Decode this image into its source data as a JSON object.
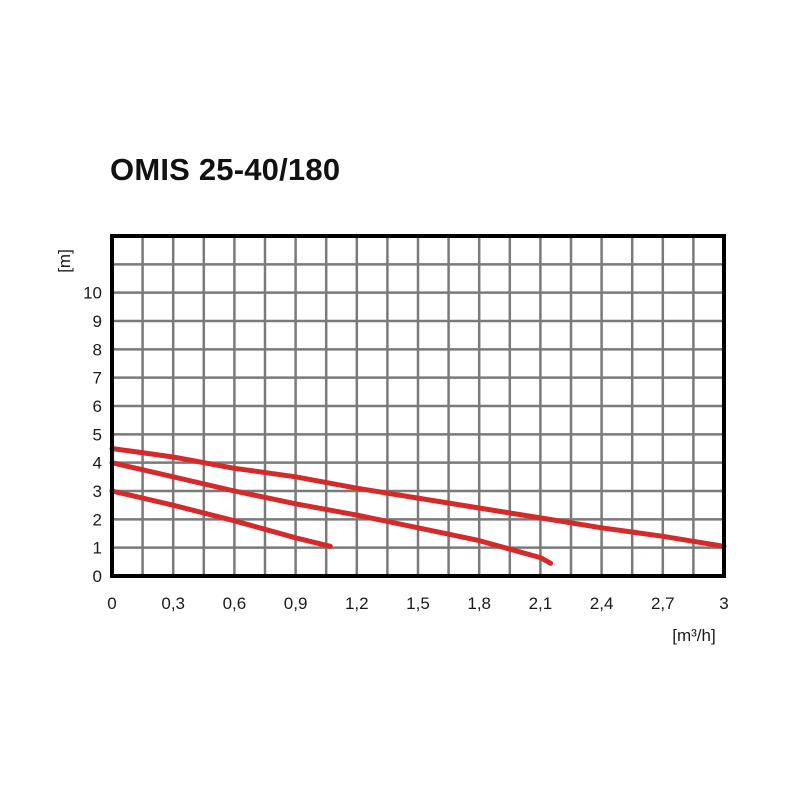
{
  "chart_data": {
    "type": "line",
    "title": "OMIS 25-40/180",
    "xlabel": "[m³/h]",
    "ylabel": "[m]",
    "xlim": [
      0,
      3
    ],
    "ylim": [
      0,
      12
    ],
    "x_ticks": [
      "0",
      "0,3",
      "0,6",
      "0,9",
      "1,2",
      "1,5",
      "1,8",
      "2,1",
      "2,4",
      "2,7",
      "3"
    ],
    "y_ticks": [
      "0",
      "1",
      "2",
      "3",
      "4",
      "5",
      "6",
      "7",
      "8",
      "9",
      "10"
    ],
    "grid": true,
    "series": [
      {
        "x": [
          0,
          0.3,
          0.6,
          0.9,
          1.2,
          1.5,
          1.8,
          2.1,
          2.4,
          2.7,
          3.0
        ],
        "y": [
          4.5,
          4.2,
          3.8,
          3.5,
          3.1,
          2.75,
          2.4,
          2.05,
          1.7,
          1.4,
          1.05
        ],
        "color": "#d42a2a"
      },
      {
        "x": [
          0,
          0.3,
          0.6,
          0.9,
          1.2,
          1.5,
          1.8,
          2.1,
          2.15
        ],
        "y": [
          4.0,
          3.5,
          3.0,
          2.55,
          2.15,
          1.7,
          1.25,
          0.65,
          0.45
        ],
        "color": "#d42a2a"
      },
      {
        "x": [
          0,
          0.3,
          0.6,
          0.9,
          1.07
        ],
        "y": [
          3.0,
          2.5,
          1.95,
          1.35,
          1.05
        ],
        "color": "#d42a2a"
      }
    ]
  }
}
